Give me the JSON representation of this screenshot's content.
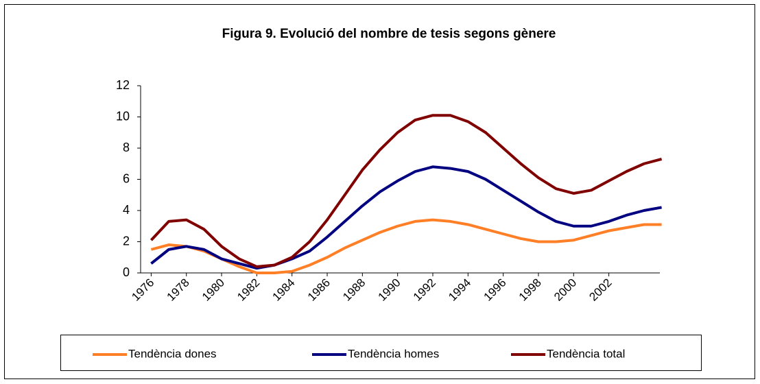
{
  "chart_data": {
    "type": "line",
    "title": "Figura 9. Evolució del nombre de tesis segons gènere",
    "x": [
      1976,
      1977,
      1978,
      1979,
      1980,
      1981,
      1982,
      1983,
      1984,
      1985,
      1986,
      1987,
      1988,
      1989,
      1990,
      1991,
      1992,
      1993,
      1994,
      1995,
      1996,
      1997,
      1998,
      1999,
      2000,
      2001,
      2002,
      2003,
      2004,
      2005
    ],
    "series": [
      {
        "name": "Tendència dones",
        "color": "#ff7f27",
        "values": [
          1.5,
          1.8,
          1.7,
          1.4,
          0.9,
          0.4,
          0.0,
          0.0,
          0.1,
          0.5,
          1.0,
          1.6,
          2.1,
          2.6,
          3.0,
          3.3,
          3.4,
          3.3,
          3.1,
          2.8,
          2.5,
          2.2,
          2.0,
          2.0,
          2.1,
          2.4,
          2.7,
          2.9,
          3.1,
          3.1
        ]
      },
      {
        "name": "Tendència homes",
        "color": "#000080",
        "values": [
          0.6,
          1.5,
          1.7,
          1.5,
          0.9,
          0.6,
          0.3,
          0.5,
          0.9,
          1.4,
          2.3,
          3.3,
          4.3,
          5.2,
          5.9,
          6.5,
          6.8,
          6.7,
          6.5,
          6.0,
          5.3,
          4.6,
          3.9,
          3.3,
          3.0,
          3.0,
          3.3,
          3.7,
          4.0,
          4.2
        ]
      },
      {
        "name": "Tendència total",
        "color": "#800000",
        "values": [
          2.1,
          3.3,
          3.4,
          2.8,
          1.7,
          0.9,
          0.4,
          0.5,
          1.0,
          2.0,
          3.4,
          5.0,
          6.6,
          7.9,
          9.0,
          9.8,
          10.1,
          10.1,
          9.7,
          9.0,
          8.0,
          7.0,
          6.1,
          5.4,
          5.1,
          5.3,
          5.9,
          6.5,
          7.0,
          7.3
        ]
      }
    ],
    "xlim": [
      1975.4,
      2005.6
    ],
    "xticks": [
      1976,
      1978,
      1980,
      1982,
      1984,
      1986,
      1988,
      1990,
      1992,
      1994,
      1996,
      1998,
      2000,
      2002
    ],
    "ylim": [
      0,
      12
    ],
    "yticks": [
      0,
      2,
      4,
      6,
      8,
      10,
      12
    ],
    "grid": false,
    "legend": "bottom"
  }
}
